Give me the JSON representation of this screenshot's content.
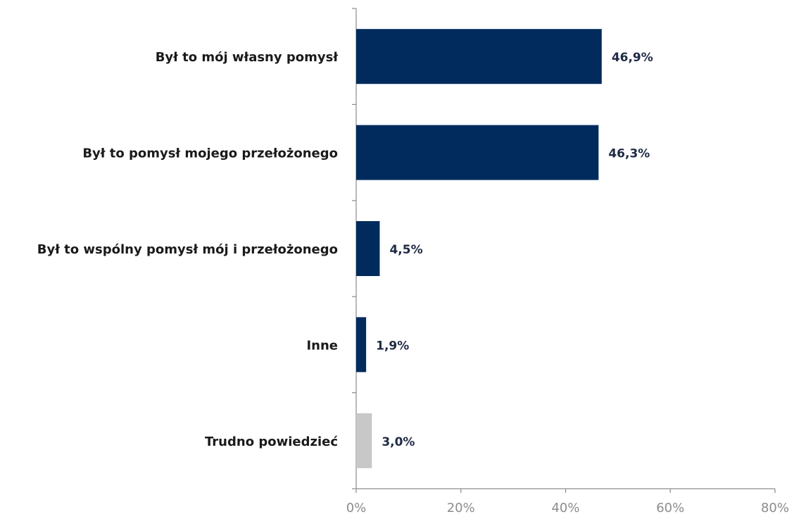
{
  "chart_data": {
    "type": "barh",
    "categories": [
      "Był to mój własny pomysł",
      "Był to pomysł mojego przełożonego",
      "Był to wspólny pomysł mój i przełożonego",
      "Inne",
      "Trudno powiedzieć"
    ],
    "values": [
      46.9,
      46.3,
      4.5,
      1.9,
      3.0
    ],
    "value_labels": [
      "46,9%",
      "46,3%",
      "4,5%",
      "1,9%",
      "3,0%"
    ],
    "colors": [
      "#002b5c",
      "#002b5c",
      "#002b5c",
      "#002b5c",
      "#c8c8c8"
    ],
    "xlim": [
      0,
      80
    ],
    "xticks": [
      {
        "value": 0,
        "label": "0%"
      },
      {
        "value": 20,
        "label": "20%"
      },
      {
        "value": 40,
        "label": "40%"
      },
      {
        "value": 60,
        "label": "60%"
      },
      {
        "value": 80,
        "label": "80%"
      }
    ]
  }
}
